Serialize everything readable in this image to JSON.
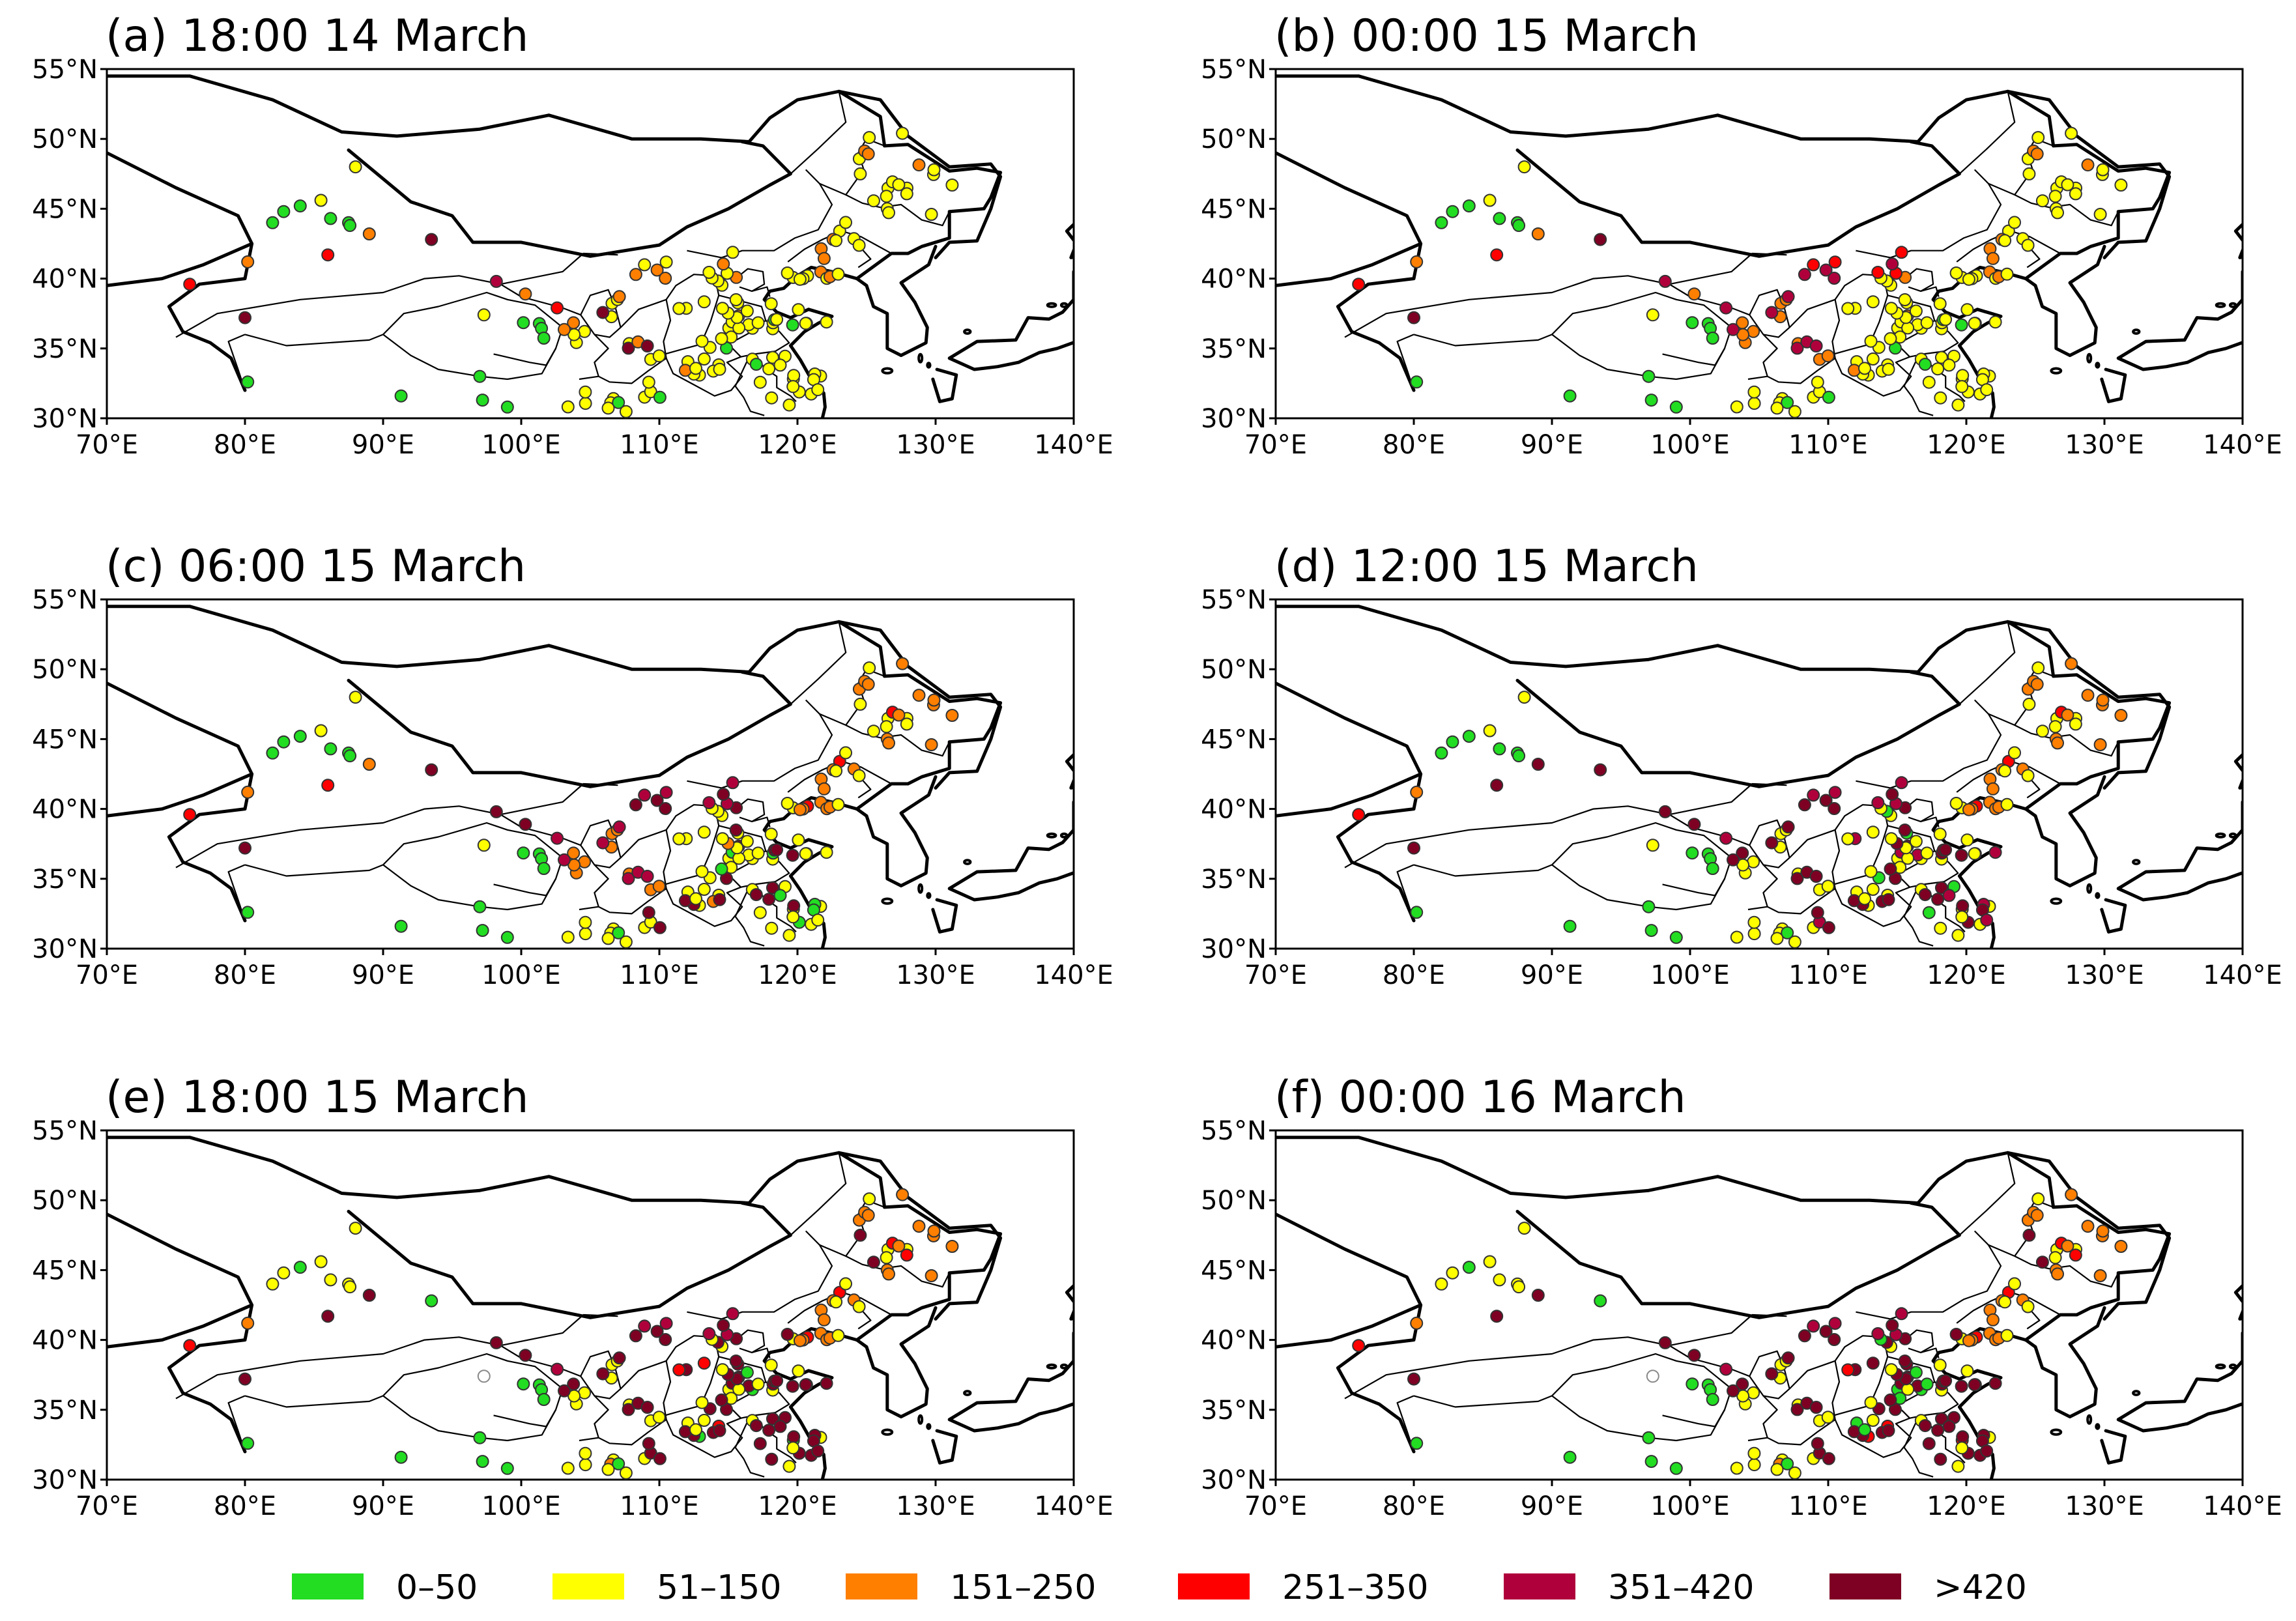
{
  "panels": [
    {
      "id": "a",
      "title": "(a) 18:00 14 March",
      "stage": 0
    },
    {
      "id": "b",
      "title": "(b) 00:00 15 March",
      "stage": 1
    },
    {
      "id": "c",
      "title": "(c) 06:00 15 March",
      "stage": 2
    },
    {
      "id": "d",
      "title": "(d) 12:00 15 March",
      "stage": 3
    },
    {
      "id": "e",
      "title": "(e) 18:00 15 March",
      "stage": 4
    },
    {
      "id": "f",
      "title": "(f) 00:00 16 March",
      "stage": 5
    }
  ],
  "axes": {
    "lon_ticks": [
      "70°E",
      "80°E",
      "90°E",
      "100°E",
      "110°E",
      "120°E",
      "130°E",
      "140°E"
    ],
    "lat_ticks": [
      "55°N",
      "50°N",
      "45°N",
      "40°N",
      "35°N",
      "30°N"
    ],
    "lon_range": [
      70,
      140
    ],
    "lat_range": [
      30,
      55
    ]
  },
  "legend": [
    {
      "label": "0–50",
      "color": "#22dd22"
    },
    {
      "label": "51–150",
      "color": "#ffff00"
    },
    {
      "label": "151–250",
      "color": "#ff7f00"
    },
    {
      "label": "251–350",
      "color": "#ff0000"
    },
    {
      "label": "351–420",
      "color": "#b0003c"
    },
    {
      "label": ">420",
      "color": "#7e0023"
    }
  ]
}
